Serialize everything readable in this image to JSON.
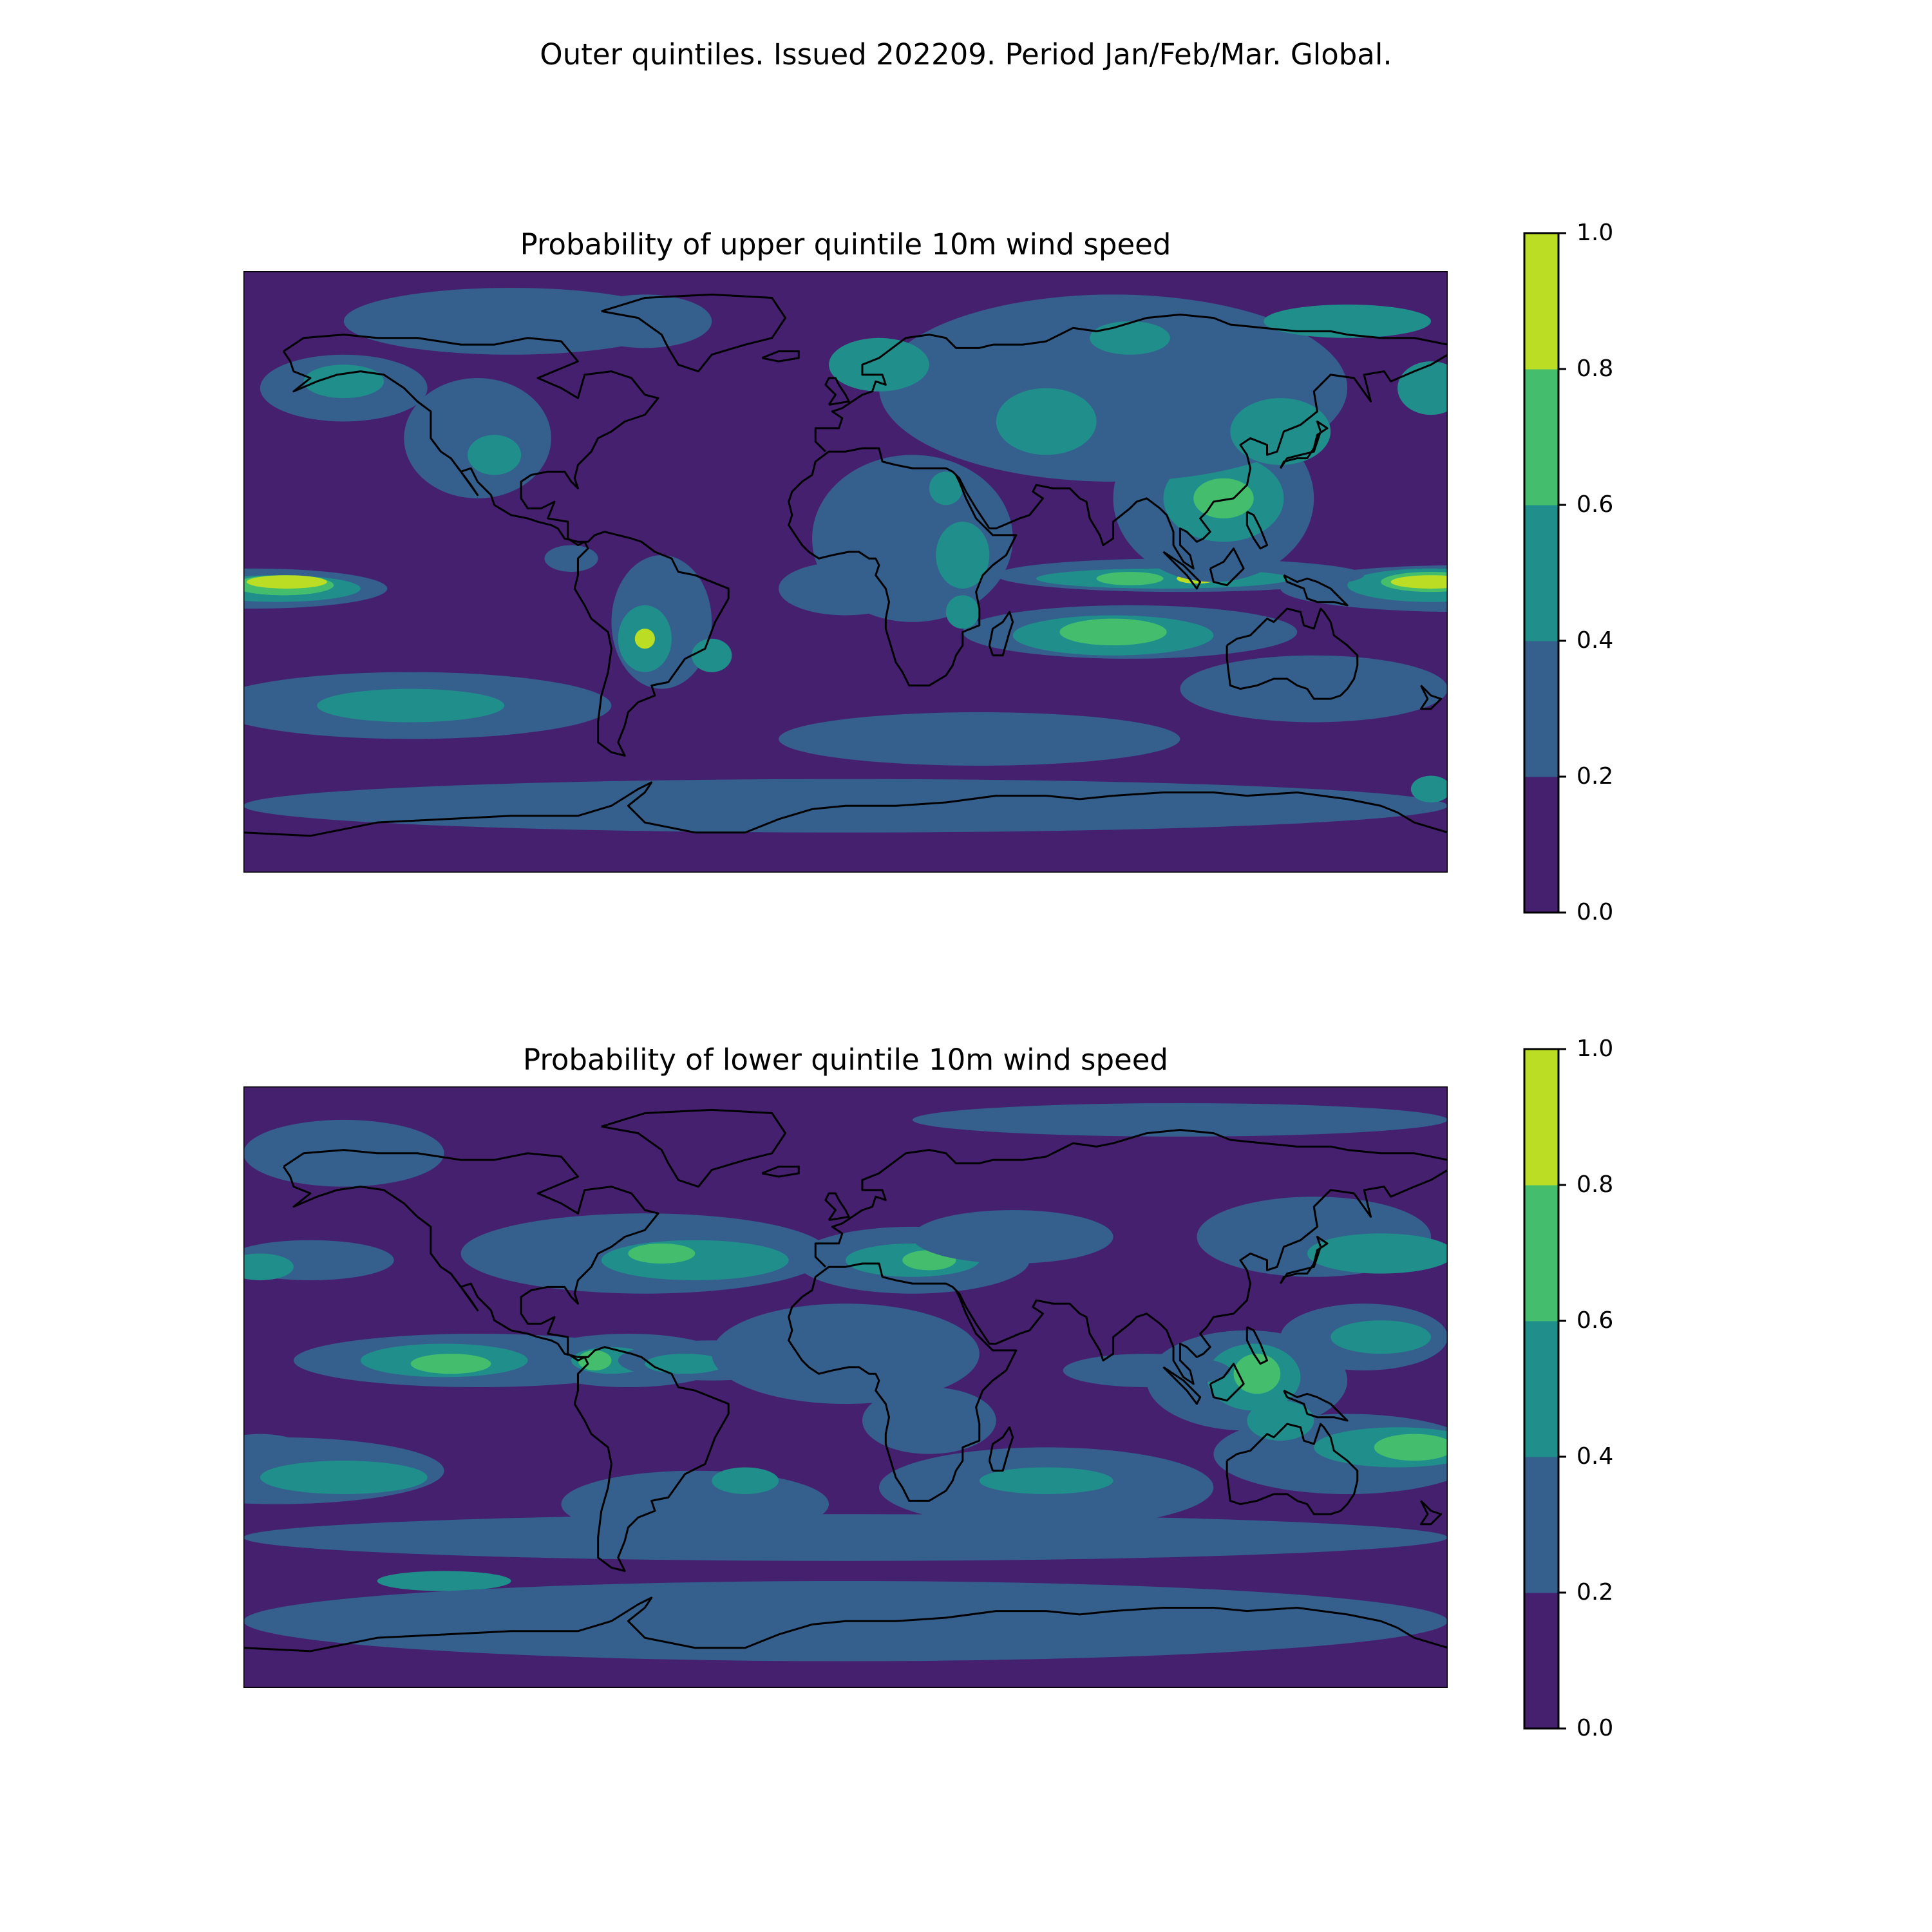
{
  "suptitle": "Outer quintiles. Issued 202209. Period Jan/Feb/Mar. Global.",
  "colorscale": {
    "levels": [
      0.0,
      0.2,
      0.4,
      0.6,
      0.8,
      1.0
    ],
    "tick_labels": [
      "0.0",
      "0.2",
      "0.4",
      "0.6",
      "0.8",
      "1.0"
    ],
    "colors": [
      "#45206f",
      "#355f8c",
      "#208f8c",
      "#44be6c",
      "#bbde25"
    ],
    "coastline_color": "#000000"
  },
  "chart_data": [
    {
      "type": "heatmap",
      "subtype": "global map, filled contours of probability",
      "title": "Probability of upper quintile 10m wind speed",
      "value_range": [
        0,
        1
      ],
      "colorbar_ticks": [
        0.0,
        0.2,
        0.4,
        0.6,
        0.8,
        1.0
      ],
      "background_value": 0.1,
      "regions": [
        {
          "lon": -82,
          "lat": 4,
          "rx": 8,
          "ry": 4,
          "value": 0.3
        },
        {
          "lon": -177,
          "lat": -5,
          "rx": 40,
          "ry": 6,
          "value": 0.3
        },
        {
          "lon": -170,
          "lat": -5,
          "rx": 25,
          "ry": 4,
          "value": 0.5
        },
        {
          "lon": -168,
          "lat": -4,
          "rx": 15,
          "ry": 3,
          "value": 0.7
        },
        {
          "lon": -167,
          "lat": -3,
          "rx": 12,
          "ry": 2,
          "value": 0.9
        },
        {
          "lon": 185,
          "lat": -5,
          "rx": 55,
          "ry": 7,
          "value": 0.3
        },
        {
          "lon": 175,
          "lat": -4,
          "rx": 25,
          "ry": 5,
          "value": 0.5
        },
        {
          "lon": 175,
          "lat": -3,
          "rx": 15,
          "ry": 3,
          "value": 0.7
        },
        {
          "lon": 175,
          "lat": -3,
          "rx": 12,
          "ry": 2,
          "value": 0.9
        },
        {
          "lon": 100,
          "lat": -1,
          "rx": 55,
          "ry": 5,
          "value": 0.3
        },
        {
          "lon": 95,
          "lat": -2,
          "rx": 38,
          "ry": 3,
          "value": 0.5
        },
        {
          "lon": 85,
          "lat": -2,
          "rx": 10,
          "ry": 2,
          "value": 0.7
        },
        {
          "lon": 105,
          "lat": -2,
          "rx": 6,
          "ry": 1.5,
          "value": 0.9
        },
        {
          "lon": 85,
          "lat": -18,
          "rx": 50,
          "ry": 8,
          "value": 0.3
        },
        {
          "lon": 80,
          "lat": -19,
          "rx": 30,
          "ry": 6,
          "value": 0.5
        },
        {
          "lon": 80,
          "lat": -18,
          "rx": 16,
          "ry": 4,
          "value": 0.7
        },
        {
          "lon": 110,
          "lat": 22,
          "rx": 30,
          "ry": 25,
          "value": 0.3
        },
        {
          "lon": 113,
          "lat": 22,
          "rx": 18,
          "ry": 13,
          "value": 0.5
        },
        {
          "lon": 113,
          "lat": 22,
          "rx": 9,
          "ry": 6,
          "value": 0.7
        },
        {
          "lon": 20,
          "lat": 10,
          "rx": 30,
          "ry": 25,
          "value": 0.3
        },
        {
          "lon": 35,
          "lat": 5,
          "rx": 8,
          "ry": 10,
          "value": 0.5
        },
        {
          "lon": 30,
          "lat": 25,
          "rx": 5,
          "ry": 5,
          "value": 0.5
        },
        {
          "lon": 35,
          "lat": -12,
          "rx": 5,
          "ry": 5,
          "value": 0.5
        },
        {
          "lon": -55,
          "lat": -15,
          "rx": 15,
          "ry": 20,
          "value": 0.3
        },
        {
          "lon": -60,
          "lat": -20,
          "rx": 8,
          "ry": 10,
          "value": 0.5
        },
        {
          "lon": -60,
          "lat": -20,
          "rx": 3,
          "ry": 3,
          "value": 0.8
        },
        {
          "lon": -40,
          "lat": -25,
          "rx": 6,
          "ry": 5,
          "value": 0.5
        },
        {
          "lon": -110,
          "lat": 40,
          "rx": 22,
          "ry": 18,
          "value": 0.3
        },
        {
          "lon": -105,
          "lat": 35,
          "rx": 8,
          "ry": 6,
          "value": 0.5
        },
        {
          "lon": -150,
          "lat": 55,
          "rx": 25,
          "ry": 10,
          "value": 0.3
        },
        {
          "lon": -150,
          "lat": 57,
          "rx": 12,
          "ry": 5,
          "value": 0.5
        },
        {
          "lon": -100,
          "lat": 75,
          "rx": 50,
          "ry": 10,
          "value": 0.3
        },
        {
          "lon": -60,
          "lat": 75,
          "rx": 20,
          "ry": 8,
          "value": 0.3
        },
        {
          "lon": 80,
          "lat": 55,
          "rx": 70,
          "ry": 28,
          "value": 0.3
        },
        {
          "lon": 10,
          "lat": 62,
          "rx": 15,
          "ry": 8,
          "value": 0.5
        },
        {
          "lon": 85,
          "lat": 70,
          "rx": 12,
          "ry": 5,
          "value": 0.5
        },
        {
          "lon": 150,
          "lat": 75,
          "rx": 25,
          "ry": 5,
          "value": 0.5
        },
        {
          "lon": 60,
          "lat": 45,
          "rx": 15,
          "ry": 10,
          "value": 0.5
        },
        {
          "lon": 130,
          "lat": 42,
          "rx": 15,
          "ry": 10,
          "value": 0.5
        },
        {
          "lon": 175,
          "lat": 55,
          "rx": 10,
          "ry": 8,
          "value": 0.5
        },
        {
          "lon": 0,
          "lat": -5,
          "rx": 20,
          "ry": 8,
          "value": 0.3
        },
        {
          "lon": -130,
          "lat": -40,
          "rx": 60,
          "ry": 10,
          "value": 0.3
        },
        {
          "lon": -130,
          "lat": -40,
          "rx": 28,
          "ry": 5,
          "value": 0.5
        },
        {
          "lon": 40,
          "lat": -50,
          "rx": 60,
          "ry": 8,
          "value": 0.3
        },
        {
          "lon": 140,
          "lat": -35,
          "rx": 40,
          "ry": 10,
          "value": 0.3
        },
        {
          "lon": 0,
          "lat": -70,
          "rx": 180,
          "ry": 8,
          "value": 0.3
        },
        {
          "lon": 175,
          "lat": -65,
          "rx": 6,
          "ry": 4,
          "value": 0.5
        }
      ]
    },
    {
      "type": "heatmap",
      "subtype": "global map, filled contours of probability",
      "title": "Probability of lower quintile 10m wind speed",
      "value_range": [
        0,
        1
      ],
      "colorbar_ticks": [
        0.0,
        0.2,
        0.4,
        0.6,
        0.8,
        1.0
      ],
      "background_value": 0.1,
      "regions": [
        {
          "lon": -60,
          "lat": 40,
          "rx": 55,
          "ry": 12,
          "value": 0.3
        },
        {
          "lon": -45,
          "lat": 38,
          "rx": 28,
          "ry": 6,
          "value": 0.5
        },
        {
          "lon": -55,
          "lat": 40,
          "rx": 10,
          "ry": 3,
          "value": 0.7
        },
        {
          "lon": 20,
          "lat": 38,
          "rx": 35,
          "ry": 10,
          "value": 0.3
        },
        {
          "lon": 20,
          "lat": 38,
          "rx": 20,
          "ry": 5,
          "value": 0.5
        },
        {
          "lon": 25,
          "lat": 38,
          "rx": 8,
          "ry": 3,
          "value": 0.7
        },
        {
          "lon": 50,
          "lat": 45,
          "rx": 30,
          "ry": 8,
          "value": 0.3
        },
        {
          "lon": 140,
          "lat": 45,
          "rx": 35,
          "ry": 12,
          "value": 0.3
        },
        {
          "lon": 160,
          "lat": 40,
          "rx": 22,
          "ry": 6,
          "value": 0.5
        },
        {
          "lon": -160,
          "lat": 38,
          "rx": 25,
          "ry": 6,
          "value": 0.3
        },
        {
          "lon": -175,
          "lat": 36,
          "rx": 10,
          "ry": 4,
          "value": 0.5
        },
        {
          "lon": -110,
          "lat": 8,
          "rx": 55,
          "ry": 8,
          "value": 0.3
        },
        {
          "lon": -120,
          "lat": 8,
          "rx": 25,
          "ry": 5,
          "value": 0.5
        },
        {
          "lon": -118,
          "lat": 7,
          "rx": 12,
          "ry": 3,
          "value": 0.7
        },
        {
          "lon": -65,
          "lat": 8,
          "rx": 30,
          "ry": 8,
          "value": 0.3
        },
        {
          "lon": -70,
          "lat": 8,
          "rx": 12,
          "ry": 4,
          "value": 0.5
        },
        {
          "lon": -75,
          "lat": 8,
          "rx": 5,
          "ry": 3,
          "value": 0.7
        },
        {
          "lon": -40,
          "lat": 8,
          "rx": 28,
          "ry": 6,
          "value": 0.3
        },
        {
          "lon": -48,
          "lat": 7,
          "rx": 12,
          "ry": 3,
          "value": 0.5
        },
        {
          "lon": 120,
          "lat": 2,
          "rx": 30,
          "ry": 15,
          "value": 0.3
        },
        {
          "lon": 122,
          "lat": 3,
          "rx": 14,
          "ry": 10,
          "value": 0.5
        },
        {
          "lon": 123,
          "lat": 4,
          "rx": 7,
          "ry": 6,
          "value": 0.7
        },
        {
          "lon": 155,
          "lat": 15,
          "rx": 25,
          "ry": 10,
          "value": 0.3
        },
        {
          "lon": 160,
          "lat": 15,
          "rx": 15,
          "ry": 5,
          "value": 0.5
        },
        {
          "lon": 90,
          "lat": 5,
          "rx": 25,
          "ry": 5,
          "value": 0.3
        },
        {
          "lon": 150,
          "lat": -20,
          "rx": 40,
          "ry": 12,
          "value": 0.3
        },
        {
          "lon": 165,
          "lat": -18,
          "rx": 25,
          "ry": 6,
          "value": 0.5
        },
        {
          "lon": 170,
          "lat": -18,
          "rx": 12,
          "ry": 4,
          "value": 0.7
        },
        {
          "lon": 130,
          "lat": -10,
          "rx": 10,
          "ry": 6,
          "value": 0.5
        },
        {
          "lon": -175,
          "lat": -20,
          "rx": 15,
          "ry": 6,
          "value": 0.3
        },
        {
          "lon": -170,
          "lat": -20,
          "rx": 8,
          "ry": 4,
          "value": 0.5
        },
        {
          "lon": -170,
          "lat": -25,
          "rx": 50,
          "ry": 10,
          "value": 0.3
        },
        {
          "lon": -150,
          "lat": -27,
          "rx": 25,
          "ry": 5,
          "value": 0.5
        },
        {
          "lon": 0,
          "lat": 10,
          "rx": 40,
          "ry": 15,
          "value": 0.3
        },
        {
          "lon": 25,
          "lat": -10,
          "rx": 20,
          "ry": 10,
          "value": 0.3
        },
        {
          "lon": 60,
          "lat": -30,
          "rx": 50,
          "ry": 12,
          "value": 0.3
        },
        {
          "lon": 60,
          "lat": -28,
          "rx": 20,
          "ry": 4,
          "value": 0.5
        },
        {
          "lon": -45,
          "lat": -35,
          "rx": 40,
          "ry": 10,
          "value": 0.3
        },
        {
          "lon": -30,
          "lat": -28,
          "rx": 10,
          "ry": 4,
          "value": 0.5
        },
        {
          "lon": 0,
          "lat": -45,
          "rx": 180,
          "ry": 7,
          "value": 0.3
        },
        {
          "lon": -120,
          "lat": -58,
          "rx": 20,
          "ry": 3,
          "value": 0.5
        },
        {
          "lon": 0,
          "lat": -70,
          "rx": 180,
          "ry": 12,
          "value": 0.3
        },
        {
          "lon": -150,
          "lat": 70,
          "rx": 30,
          "ry": 10,
          "value": 0.3
        },
        {
          "lon": 100,
          "lat": 80,
          "rx": 80,
          "ry": 5,
          "value": 0.3
        }
      ]
    }
  ]
}
